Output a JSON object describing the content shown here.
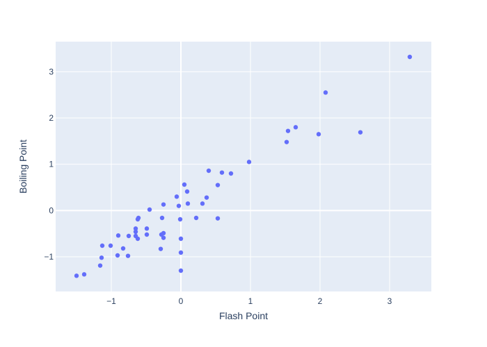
{
  "chart_data": {
    "type": "scatter",
    "title": "",
    "xlabel": "Flash Point",
    "ylabel": "Boiling Point",
    "xlim": [
      -1.8,
      3.6
    ],
    "ylim": [
      -1.75,
      3.65
    ],
    "xticks": [
      -1,
      0,
      1,
      2,
      3
    ],
    "yticks": [
      -1,
      0,
      1,
      2,
      3
    ],
    "grid": true,
    "legend": "none",
    "colors": {
      "plot_bg": "#e5ecf6",
      "grid": "#ffffff",
      "marker": "#636efa",
      "text": "#2a3f5f"
    },
    "series": [
      {
        "x": [
          -1.5,
          -1.39,
          -1.16,
          -1.14,
          -1.13,
          -1.01,
          -0.91,
          -0.9,
          -0.83,
          -0.76,
          -0.75,
          -0.65,
          -0.65,
          -0.65,
          -0.62,
          -0.62,
          -0.61,
          -0.49,
          -0.49,
          -0.45,
          -0.29,
          -0.28,
          -0.27,
          -0.25,
          -0.25,
          -0.25,
          -0.06,
          -0.03,
          -0.01,
          0.0,
          0.0,
          0.0,
          0.05,
          0.09,
          0.1,
          0.22,
          0.31,
          0.37,
          0.4,
          0.53,
          0.53,
          0.59,
          0.72,
          0.98,
          1.52,
          1.54,
          1.65,
          1.98,
          2.08,
          2.58,
          3.29
        ],
        "y": [
          -1.41,
          -1.38,
          -1.19,
          -1.02,
          -0.76,
          -0.76,
          -0.97,
          -0.54,
          -0.82,
          -0.98,
          -0.55,
          -0.55,
          -0.39,
          -0.46,
          -0.61,
          -0.19,
          -0.16,
          -0.39,
          -0.52,
          0.02,
          -0.83,
          -0.52,
          -0.16,
          -0.49,
          -0.59,
          0.13,
          0.3,
          0.1,
          -0.19,
          -0.61,
          -0.91,
          -1.3,
          0.56,
          0.41,
          0.15,
          -0.16,
          0.15,
          0.28,
          0.86,
          0.55,
          -0.17,
          0.82,
          0.8,
          1.05,
          1.48,
          1.72,
          1.8,
          1.65,
          2.55,
          1.69,
          3.32
        ]
      }
    ]
  }
}
